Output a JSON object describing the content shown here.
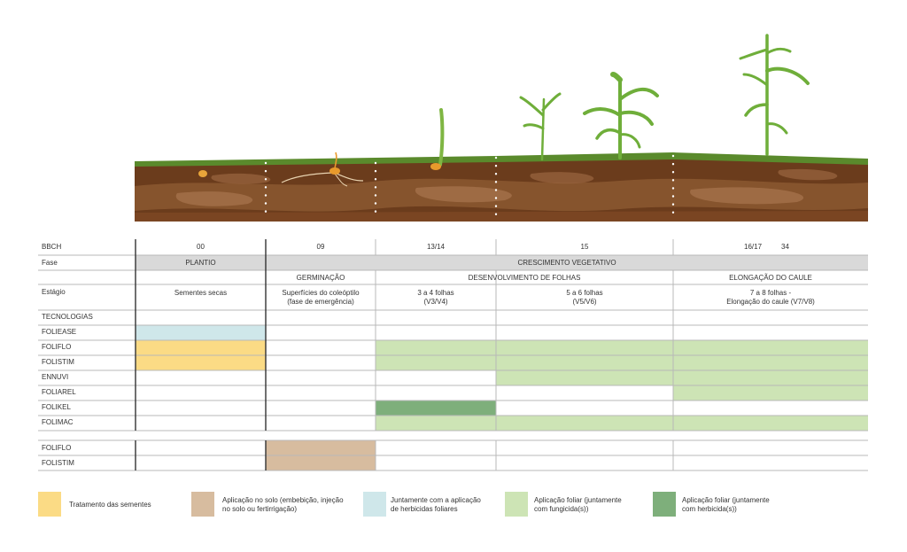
{
  "header": {
    "bbch_label": "BBCH",
    "fase_label": "Fase",
    "estagio_label": "Estágio",
    "tecnologias_label": "TECNOLOGIAS",
    "bbch_codes": [
      "00",
      "09",
      "13/14",
      "15",
      "16/17",
      "34"
    ],
    "fases": {
      "plantio": "PLANTIO",
      "crescimento": "CRESCIMENTO VEGETATIVO"
    },
    "subfases": {
      "germinacao": "GERMINAÇÃO",
      "desenvolvimento": "DESENVOLVIMENTO DE FOLHAS",
      "elongacao": "ELONGAÇÃO DO CAULE"
    },
    "estagios": [
      [
        "Sementes secas"
      ],
      [
        "Superfícies do coleóptilo",
        "(fase de emergência)"
      ],
      [
        "3 a 4 folhas",
        "(V3/V4)"
      ],
      [
        "5 a 6 folhas",
        "(V5/V6)"
      ],
      [
        "7 a 8 folhas -",
        "Elongação do caule (V7/V8)"
      ]
    ]
  },
  "products": [
    "FOLIEASE",
    "FOLIFLO",
    "FOLISTIM",
    "ENNUVI",
    "FOLIAREL",
    "FOLIKEL",
    "FOLIMAC"
  ],
  "soil_products": [
    "FOLIFLO",
    "FOLISTIM"
  ],
  "colors": {
    "seed_treatment": "#fbdb85",
    "soil": "#d7bc9f",
    "herbicide_joint": "#cfe7ea",
    "foliar_fungicide": "#cde4b5",
    "foliar_herbicide": "#7eaf7b",
    "phase_bar": "#d9d9d9",
    "grass": "#5a8a2c",
    "soil_dark": "#6b3c1c",
    "plant": "#6fae3a"
  },
  "fills": {
    "FOLIEASE": [
      {
        "from": 0,
        "to": 1,
        "color": "herbicide_joint"
      }
    ],
    "FOLIFLO": [
      {
        "from": 0,
        "to": 1,
        "color": "seed_treatment"
      },
      {
        "from": 2,
        "to": 5,
        "color": "foliar_fungicide"
      }
    ],
    "FOLISTIM": [
      {
        "from": 0,
        "to": 1,
        "color": "seed_treatment"
      },
      {
        "from": 2,
        "to": 5,
        "color": "foliar_fungicide"
      }
    ],
    "ENNUVI": [
      {
        "from": 3,
        "to": 5,
        "color": "foliar_fungicide"
      }
    ],
    "FOLIAREL": [
      {
        "from": 4,
        "to": 5,
        "color": "foliar_fungicide"
      }
    ],
    "FOLIKEL": [
      {
        "from": 2,
        "to": 3,
        "color": "foliar_herbicide"
      }
    ],
    "FOLIMAC": [
      {
        "from": 2,
        "to": 5,
        "color": "foliar_fungicide"
      }
    ],
    "soil_FOLIFLO": [
      {
        "from": 1,
        "to": 2,
        "color": "soil"
      }
    ],
    "soil_FOLISTIM": [
      {
        "from": 1,
        "to": 2,
        "color": "soil"
      }
    ]
  },
  "legend": [
    {
      "color": "seed_treatment",
      "lines": [
        "Tratamento das sementes"
      ]
    },
    {
      "color": "soil",
      "lines": [
        "Aplicação no solo (embebição, injeção",
        "no solo ou fertirrigação)"
      ]
    },
    {
      "color": "herbicide_joint",
      "lines": [
        "Juntamente com a aplicação",
        "de herbicidas foliares"
      ]
    },
    {
      "color": "foliar_fungicide",
      "lines": [
        "Aplicação foliar (juntamente",
        "com fungicida(s))"
      ]
    },
    {
      "color": "foliar_herbicide",
      "lines": [
        "Aplicação foliar (juntamente",
        "com herbicida(s))"
      ]
    }
  ]
}
